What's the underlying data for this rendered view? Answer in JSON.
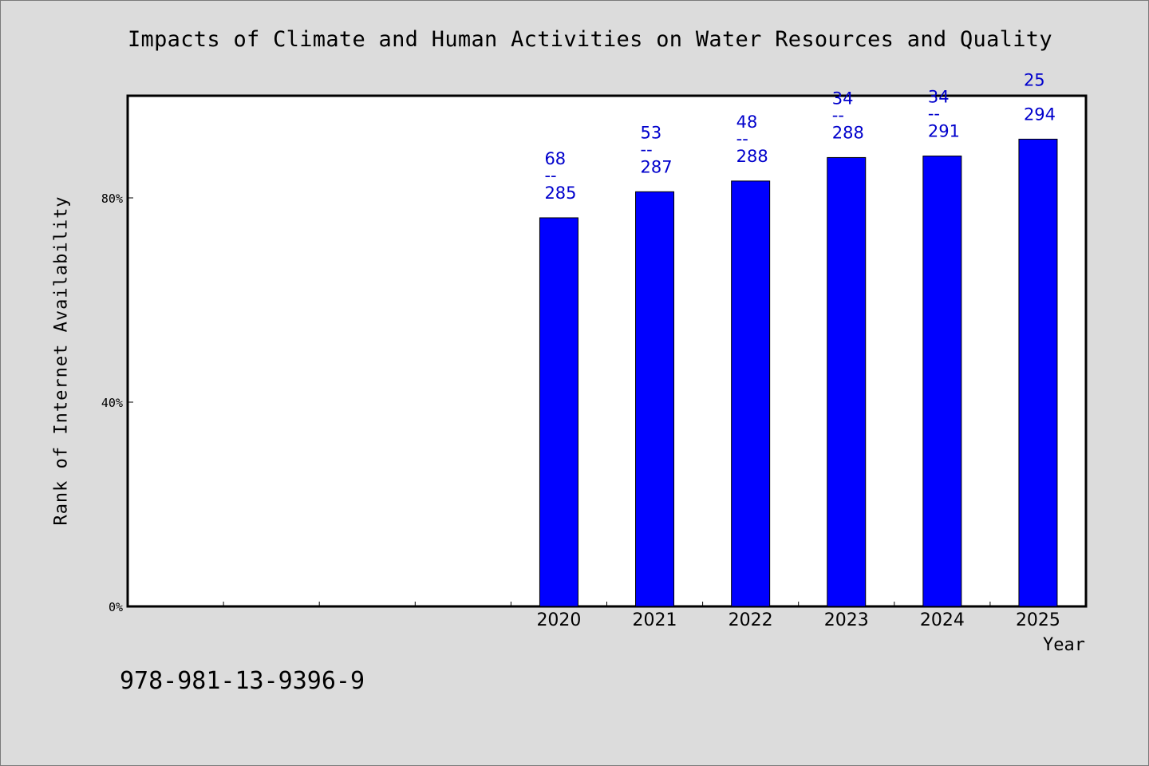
{
  "page": {
    "isbn_text": "978-981-13-9396-9"
  },
  "colors": {
    "background": "#dcdcdc",
    "plot_background": "#ffffff",
    "bar": "#0000ff",
    "label": "#0000cc"
  },
  "chart_data": {
    "type": "bar",
    "title": "Impacts of Climate and Human Activities on Water Resources and Quality",
    "xlabel": "Year",
    "ylabel": "Rank of Internet Availability",
    "ylim": [
      0,
      100
    ],
    "yticks": [
      {
        "value": 0,
        "label": "0%"
      },
      {
        "value": 40,
        "label": "40%"
      },
      {
        "value": 80,
        "label": "80%"
      }
    ],
    "slot_count": 10,
    "grid": false,
    "categories": [
      "2020",
      "2021",
      "2022",
      "2023",
      "2024",
      "2025"
    ],
    "values": [
      76.1,
      81.2,
      83.3,
      87.9,
      88.2,
      91.5
    ],
    "rank": [
      "68",
      "53",
      "48",
      "34",
      "34",
      "25"
    ],
    "total": [
      "285",
      "287",
      "288",
      "288",
      "291",
      "294"
    ],
    "separator": "--"
  }
}
